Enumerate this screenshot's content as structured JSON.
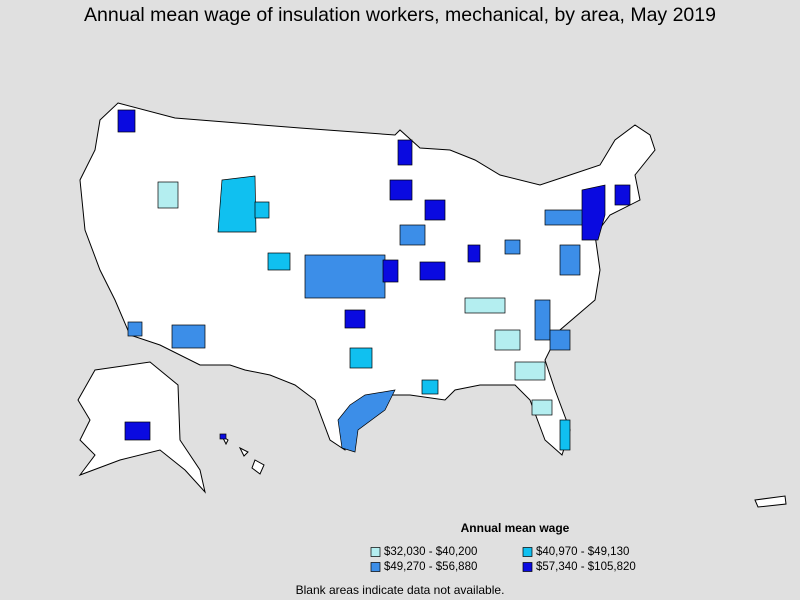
{
  "title": "Annual mean wage of insulation workers, mechanical, by area, May 2019",
  "legend": {
    "title": "Annual mean wage",
    "items": [
      {
        "label": "$32,030 - $40,200",
        "color": "#b4eef0"
      },
      {
        "label": "$40,970 - $49,130",
        "color": "#10c0f0"
      },
      {
        "label": "$49,270 - $56,880",
        "color": "#3c8ee8"
      },
      {
        "label": "$57,340 - $105,820",
        "color": "#0a0ae0"
      }
    ]
  },
  "footnote": "Blank areas indicate data not available."
}
